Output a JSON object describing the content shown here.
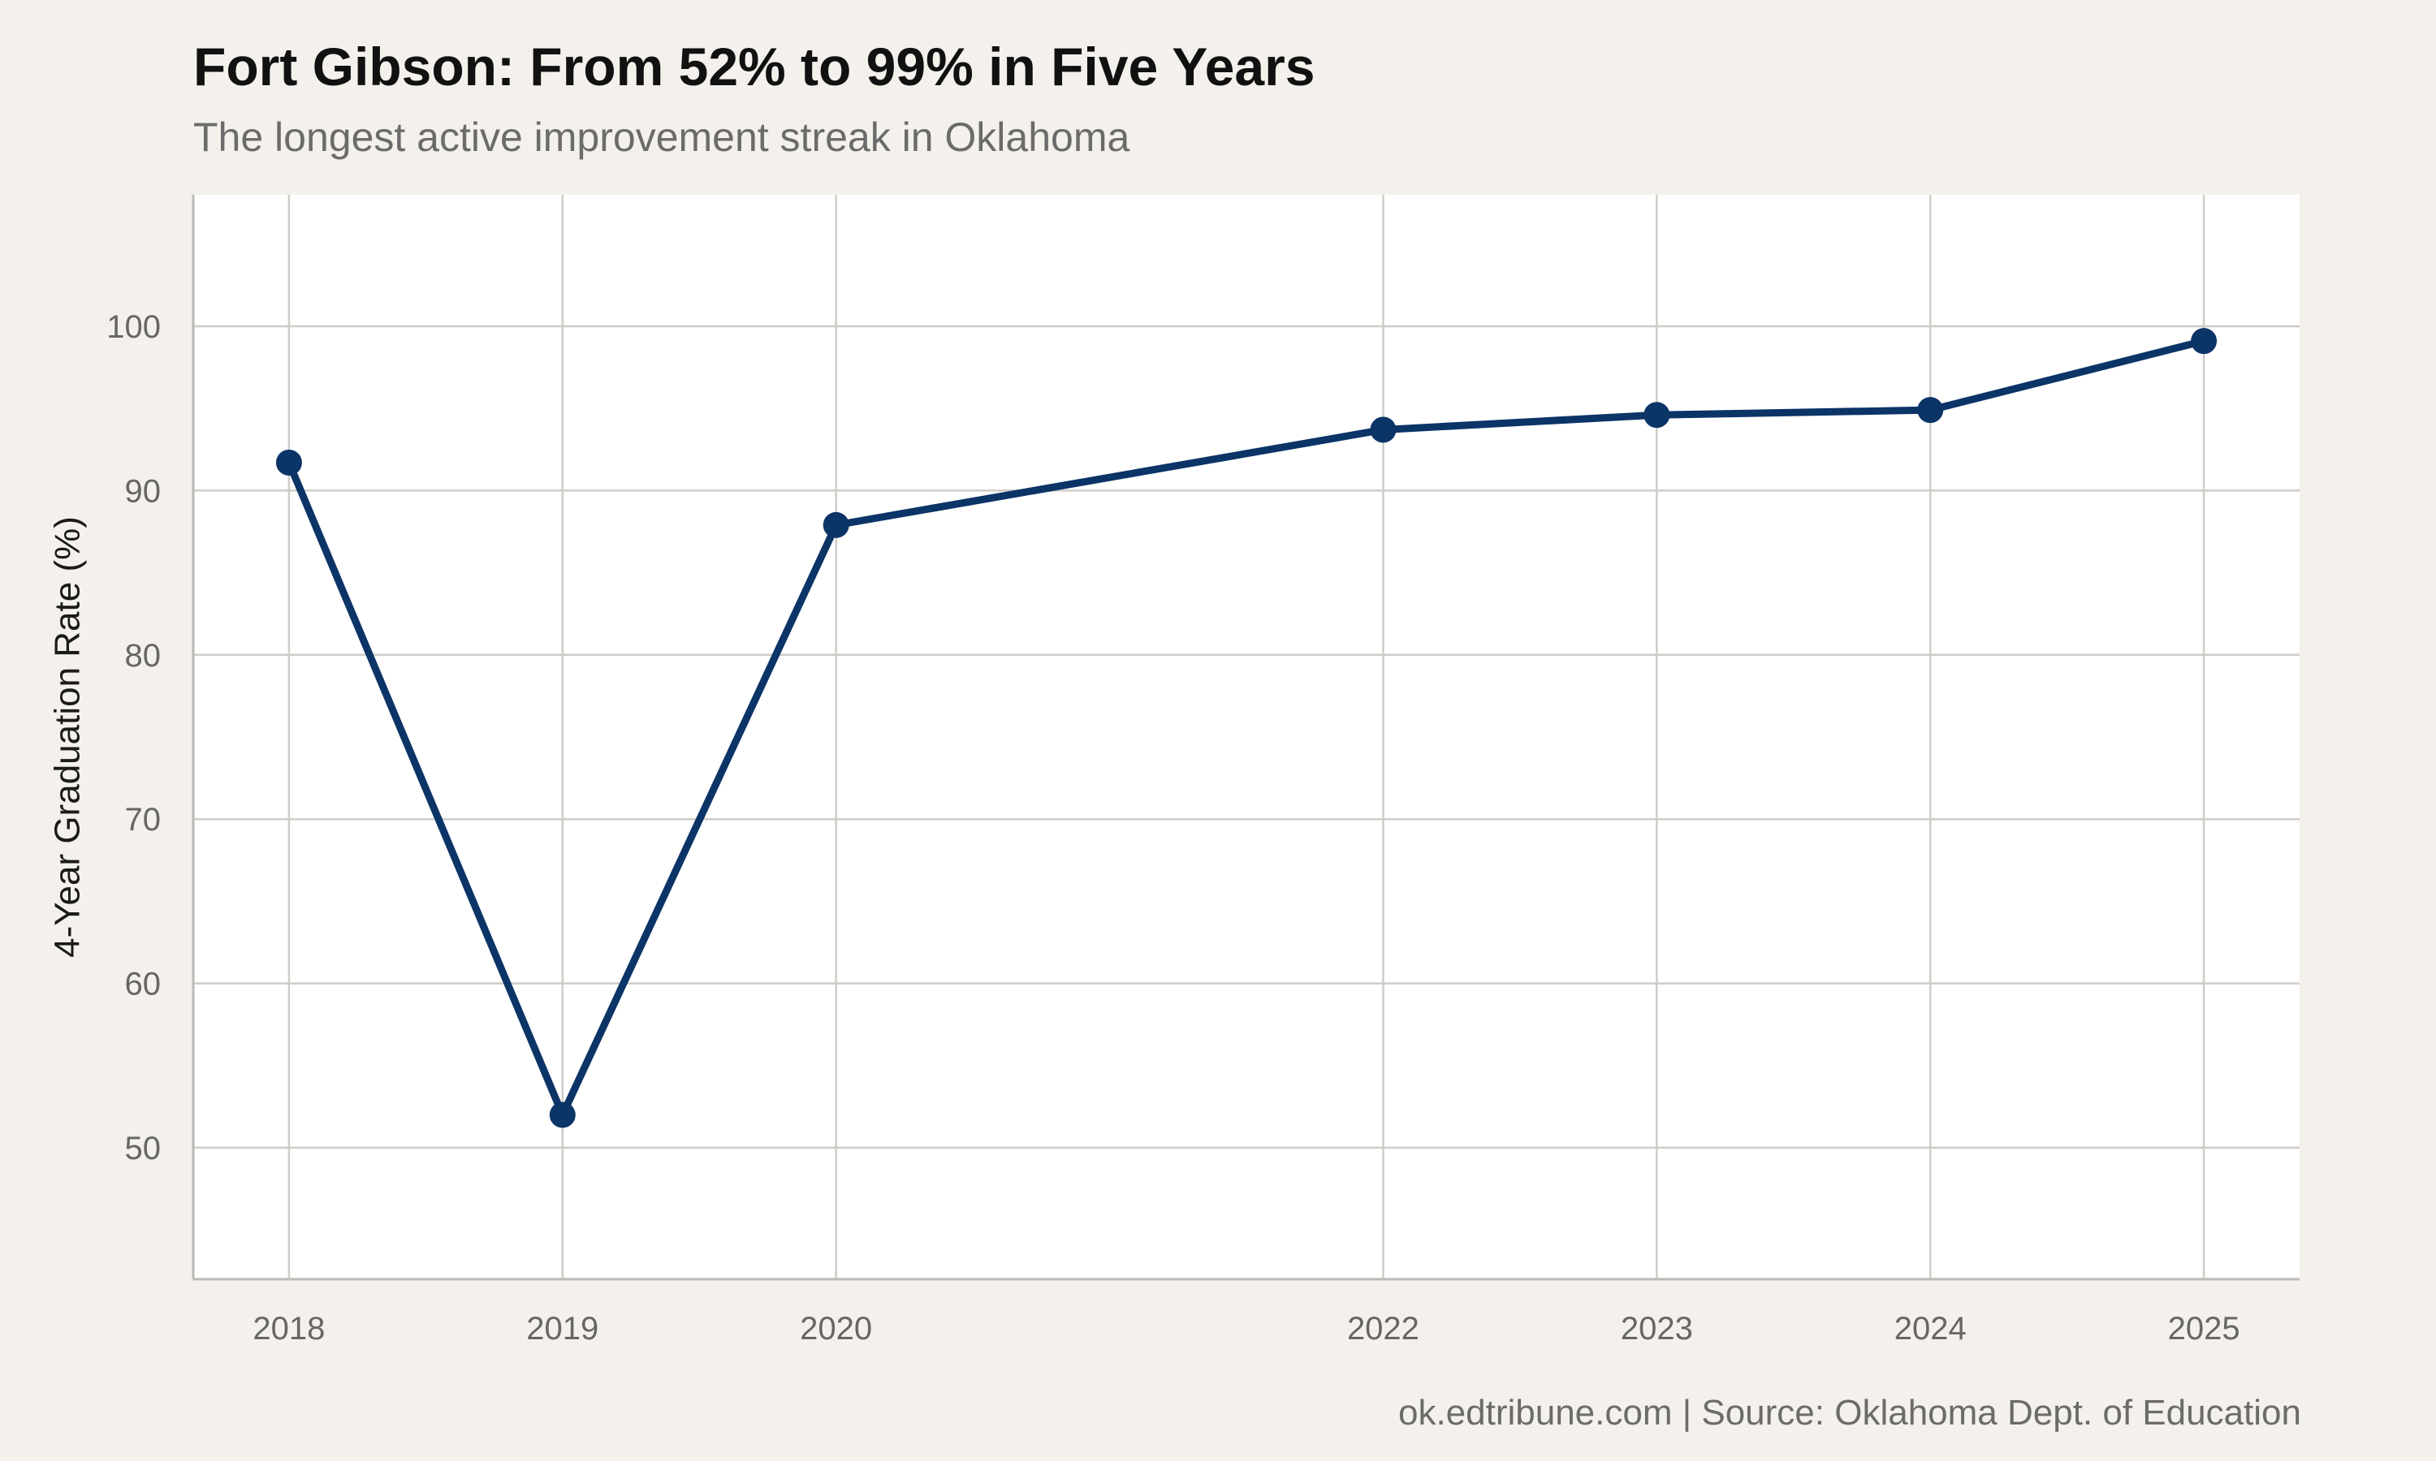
{
  "chart_data": {
    "type": "line",
    "title": "Fort Gibson: From 52% to 99% in Five Years",
    "subtitle": "The longest active improvement streak in Oklahoma",
    "caption": "ok.edtribune.com | Source: Oklahoma Dept. of Education",
    "xlabel": "",
    "ylabel": "4-Year Graduation Rate (%)",
    "x": [
      2018,
      2019,
      2020,
      2022,
      2023,
      2024,
      2025
    ],
    "series": [
      {
        "values": [
          91.7,
          52.0,
          87.9,
          93.7,
          94.6,
          94.9,
          99.1
        ]
      }
    ],
    "xlim": [
      2017.65,
      2025.35
    ],
    "ylim": [
      42,
      108
    ],
    "yticks": [
      50,
      60,
      70,
      80,
      90,
      100
    ],
    "xticks": [
      2018,
      2019,
      2020,
      2022,
      2023,
      2024,
      2025
    ],
    "grid": true,
    "legend": "none",
    "colors": {
      "line": "#0b3467",
      "panel": "#ffffff",
      "background": "#f4f1ec",
      "grid": "#cfccc7"
    }
  }
}
